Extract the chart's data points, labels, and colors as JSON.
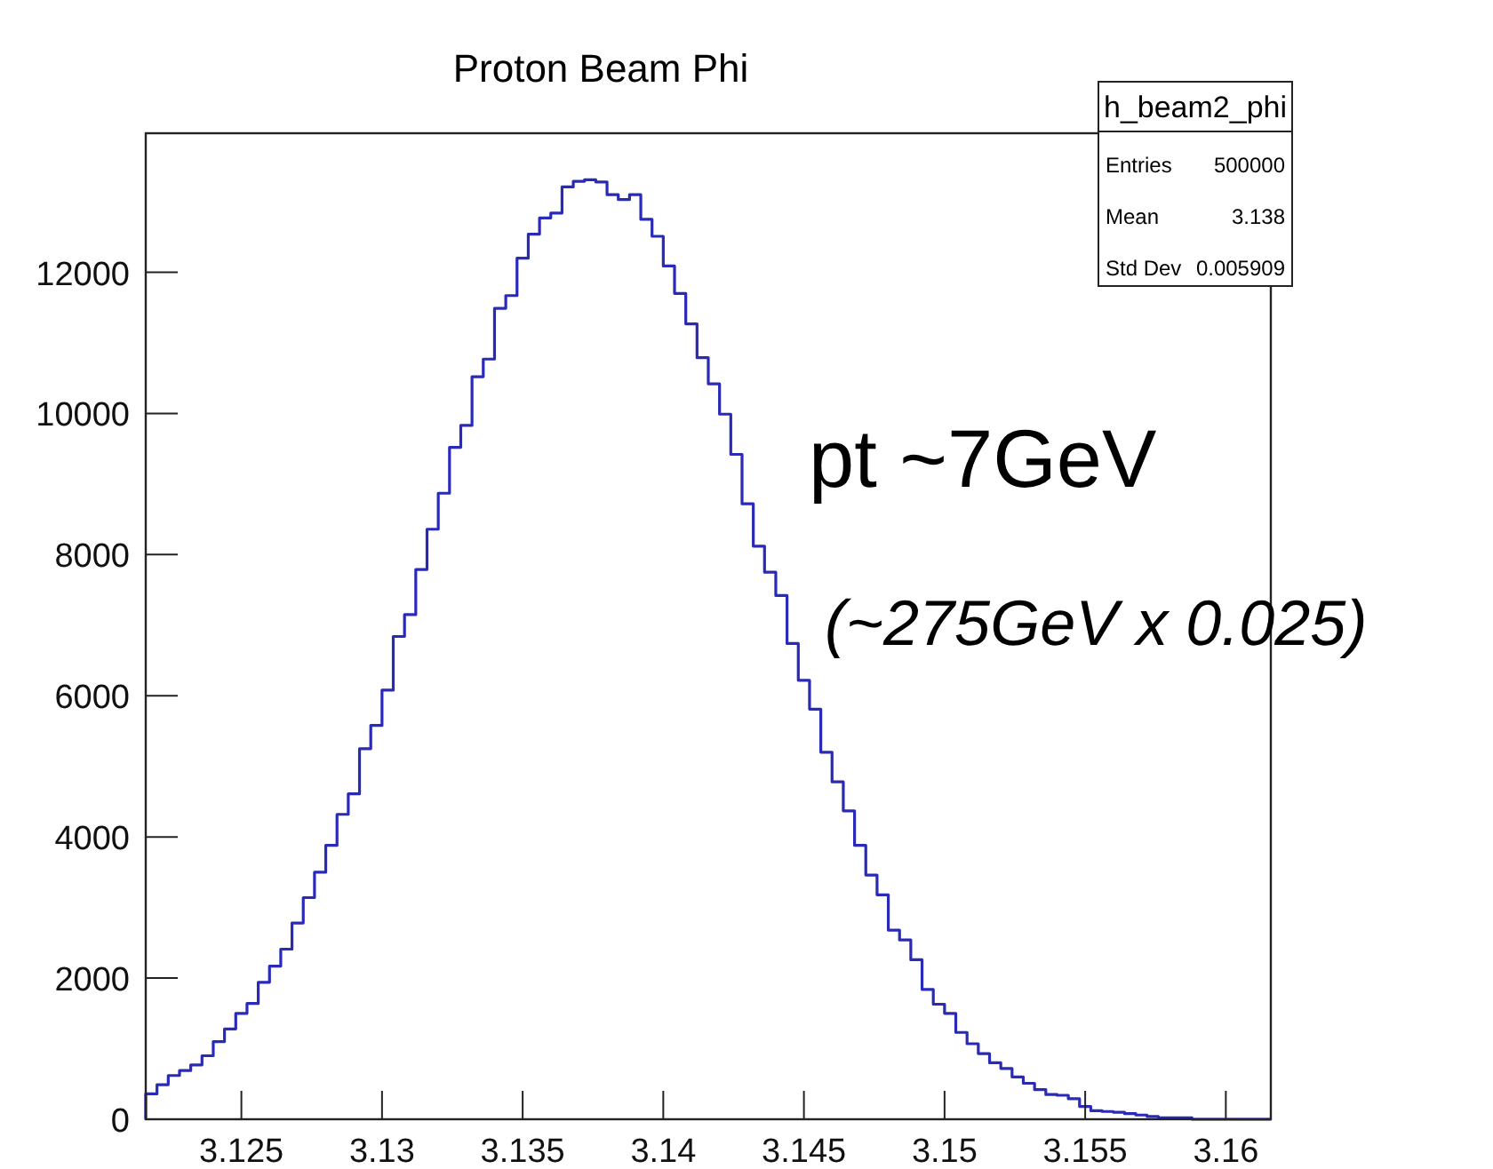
{
  "chart_data": {
    "type": "histogram",
    "title": "Proton Beam Phi",
    "bins": [
      3.1216,
      3.122,
      3.1224,
      3.1228,
      3.1232,
      3.1236,
      3.124,
      3.1244,
      3.1248,
      3.1252,
      3.1256,
      3.126,
      3.1264,
      3.1268,
      3.1272,
      3.1276,
      3.128,
      3.1284,
      3.1288,
      3.1292,
      3.1296,
      3.13,
      3.1304,
      3.1308,
      3.1312,
      3.1316,
      3.132,
      3.1324,
      3.1328,
      3.1332,
      3.1336,
      3.134,
      3.1344,
      3.1348,
      3.1352,
      3.1356,
      3.136,
      3.1364,
      3.1368,
      3.1372,
      3.1376,
      3.138,
      3.1384,
      3.1388,
      3.1392,
      3.1396,
      3.14,
      3.1404,
      3.1408,
      3.1412,
      3.1416,
      3.142,
      3.1424,
      3.1428,
      3.1432,
      3.1436,
      3.144,
      3.1444,
      3.1448,
      3.1452,
      3.1456,
      3.146,
      3.1464,
      3.1468,
      3.1472,
      3.1476,
      3.148,
      3.1484,
      3.1488,
      3.1492,
      3.1496,
      3.15,
      3.1504,
      3.1508,
      3.1512,
      3.1516,
      3.152,
      3.1524,
      3.1528,
      3.1532,
      3.1536,
      3.154,
      3.1544,
      3.1548,
      3.1552,
      3.1556,
      3.156,
      3.1564,
      3.1568,
      3.1572,
      3.1576,
      3.158,
      3.1584,
      3.1588,
      3.1592,
      3.1596,
      3.16,
      3.1604,
      3.1608,
      3.1612,
      3.1616
    ],
    "values": [
      360,
      490,
      620,
      690,
      770,
      900,
      1100,
      1280,
      1500,
      1640,
      1940,
      2170,
      2410,
      2780,
      3140,
      3500,
      3880,
      4320,
      4610,
      5250,
      5580,
      6080,
      6840,
      7150,
      7790,
      8360,
      8870,
      9520,
      9830,
      10520,
      10770,
      11490,
      11670,
      12200,
      12540,
      12770,
      12840,
      13210,
      13290,
      13310,
      13280,
      13100,
      13030,
      13100,
      12750,
      12510,
      12090,
      11700,
      11270,
      10790,
      10420,
      9990,
      9420,
      8720,
      8120,
      7750,
      7420,
      6740,
      6220,
      5810,
      5200,
      4780,
      4370,
      3880,
      3460,
      3180,
      2680,
      2540,
      2260,
      1840,
      1630,
      1500,
      1230,
      1070,
      930,
      800,
      720,
      600,
      510,
      420,
      350,
      340,
      290,
      180,
      120,
      110,
      100,
      80,
      60,
      40,
      20,
      20,
      20,
      0,
      0,
      0,
      0,
      0,
      0,
      0
    ],
    "color": "#2a2ab8",
    "xlim": [
      3.1216,
      3.1616
    ],
    "xticks": [
      3.125,
      3.13,
      3.135,
      3.14,
      3.145,
      3.15,
      3.155,
      3.16
    ],
    "ylim": [
      0,
      13970
    ],
    "yticks": [
      0,
      2000,
      4000,
      6000,
      8000,
      10000,
      12000
    ],
    "annotations": [
      "h_beam2_phi",
      "Entries",
      "500000",
      "Mean",
      "3.138",
      "Std Dev",
      "0.005909",
      "pt ~7GeV",
      "(~275GeV x 0.025)"
    ]
  }
}
